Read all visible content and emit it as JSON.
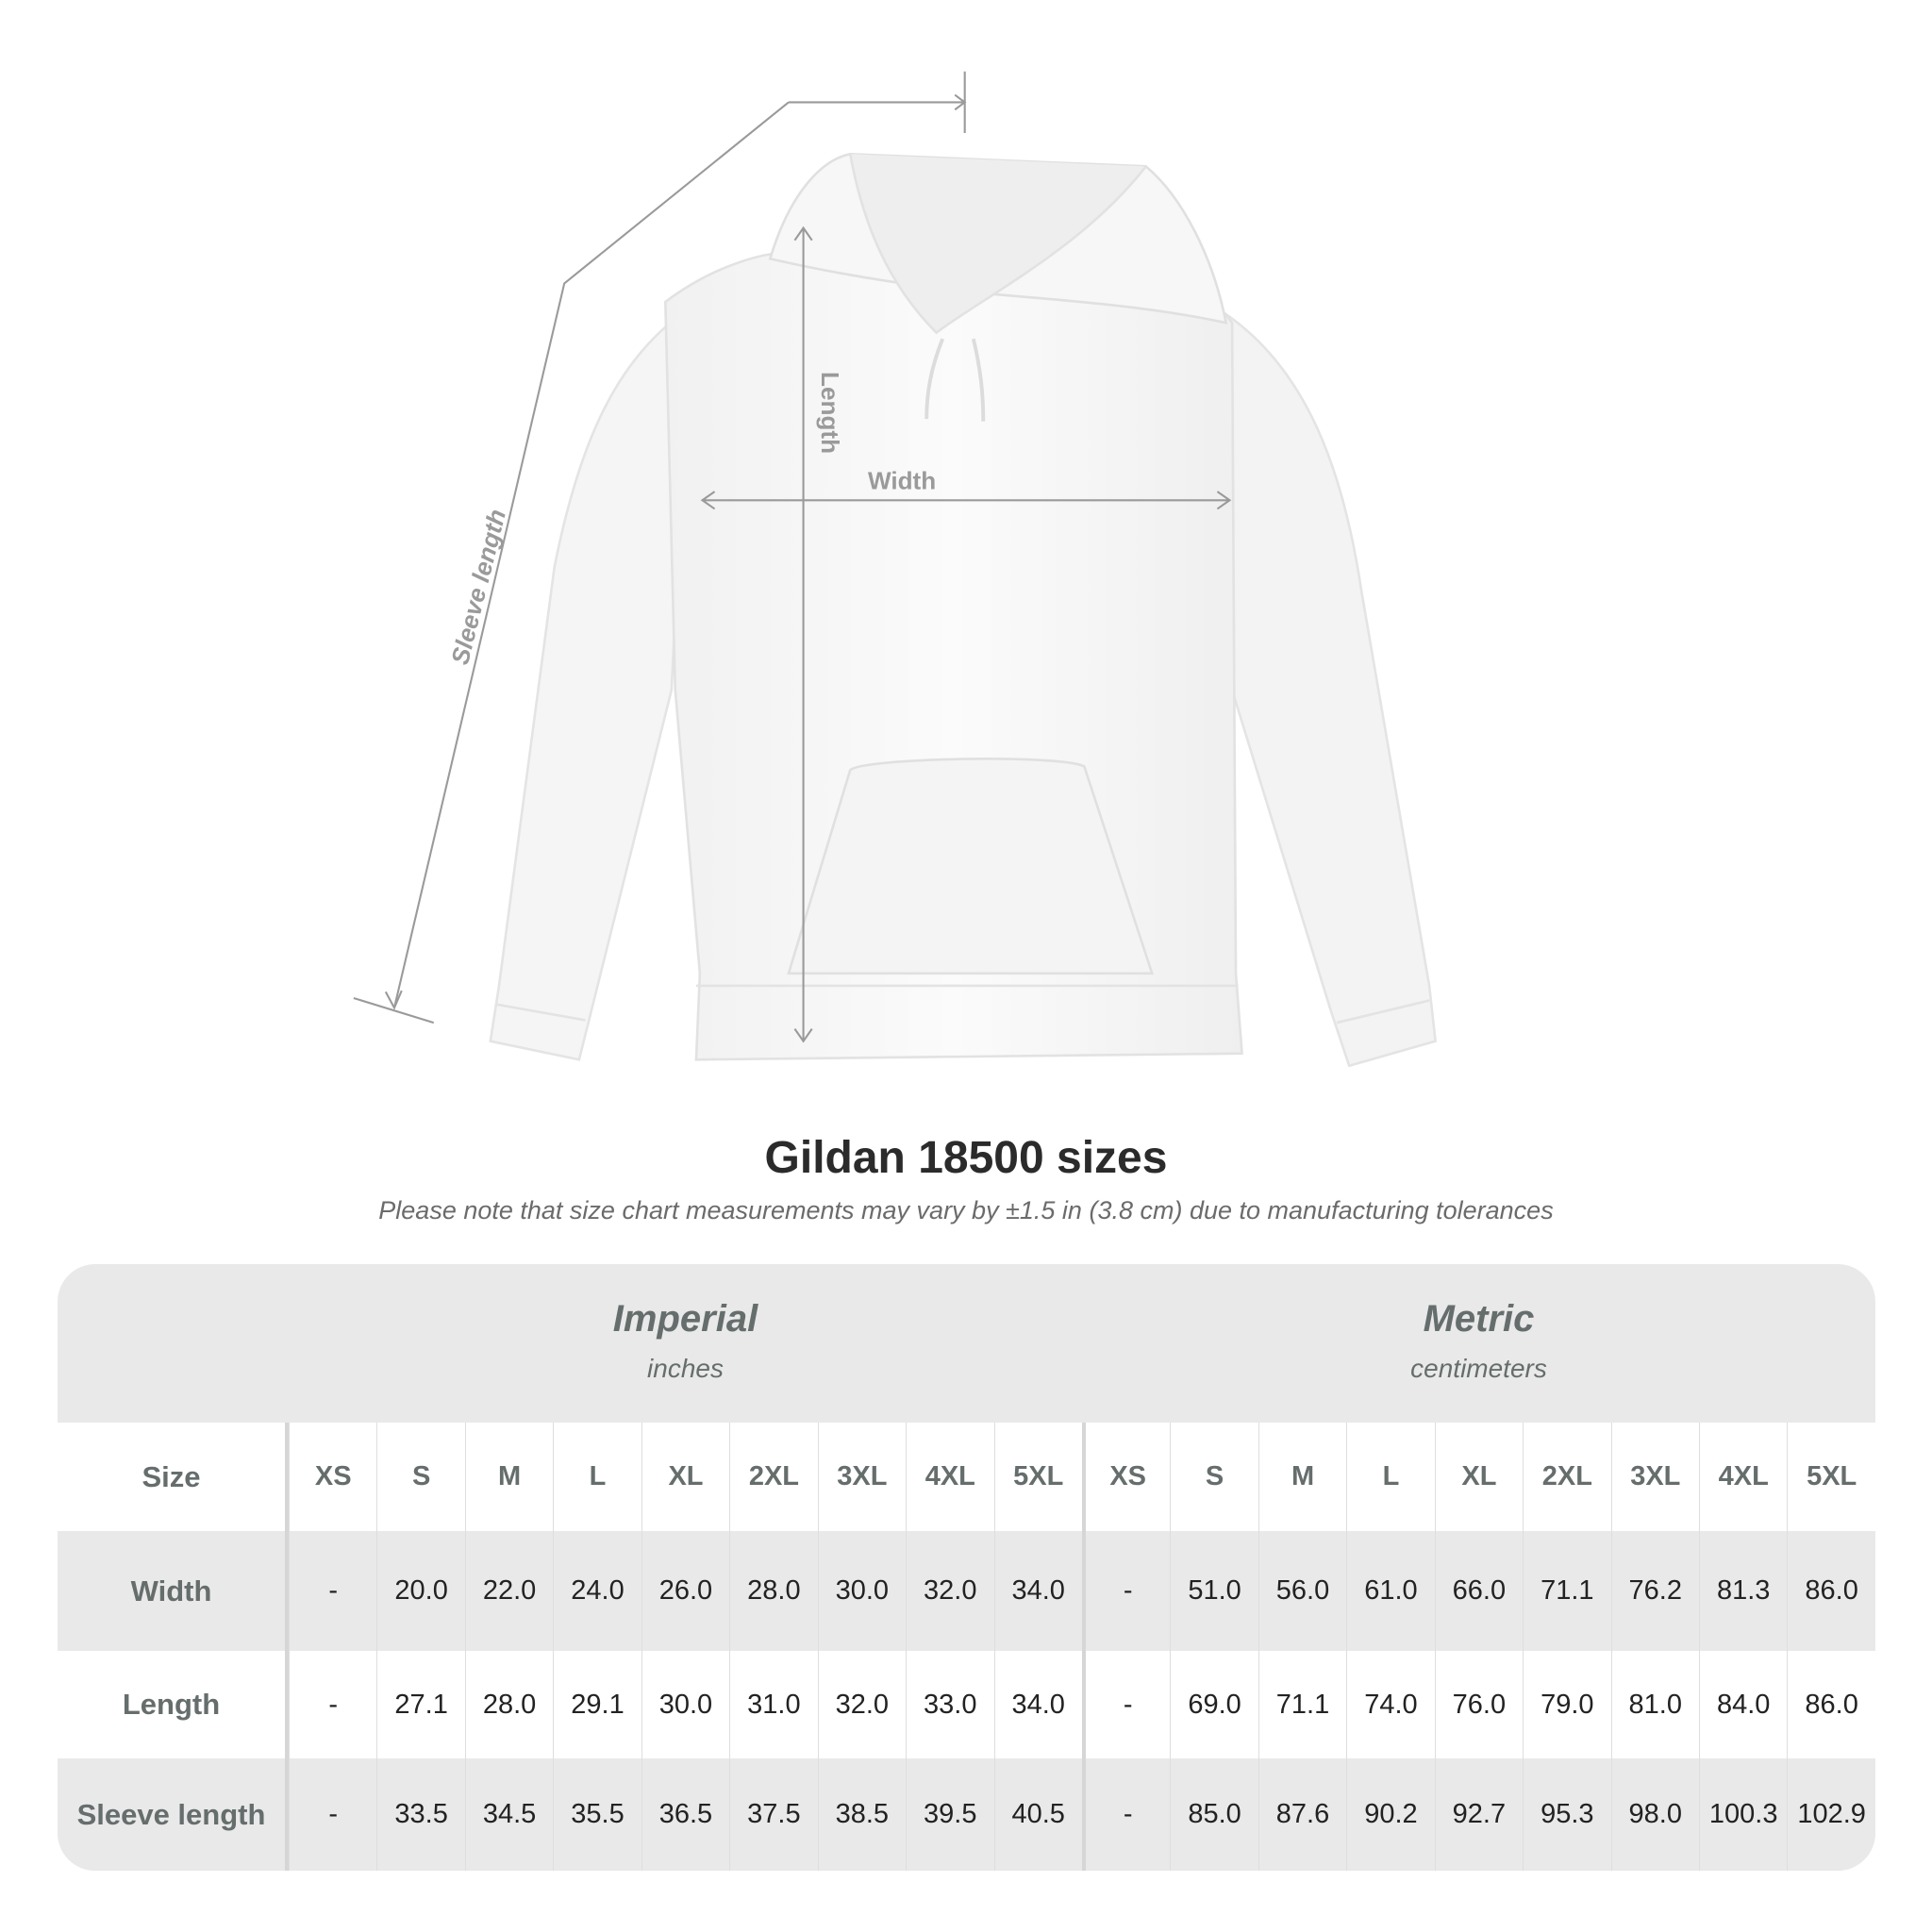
{
  "diagram": {
    "labels": {
      "sleeve": "Sleeve length",
      "length": "Length",
      "width": "Width"
    },
    "line_color": "#9a9a9a"
  },
  "title": "Gildan 18500 sizes",
  "note": "Please note that size chart measurements may vary by ±1.5 in (3.8 cm) due to manufacturing tolerances",
  "table": {
    "imperial": {
      "title": "Imperial",
      "unit": "inches"
    },
    "metric": {
      "title": "Metric",
      "unit": "centimeters"
    },
    "size_label": "Size",
    "sizes": [
      "XS",
      "S",
      "M",
      "L",
      "XL",
      "2XL",
      "3XL",
      "4XL",
      "5XL"
    ],
    "rows": [
      {
        "label": "Width",
        "imperial": [
          "-",
          "20.0",
          "22.0",
          "24.0",
          "26.0",
          "28.0",
          "30.0",
          "32.0",
          "34.0"
        ],
        "metric": [
          "-",
          "51.0",
          "56.0",
          "61.0",
          "66.0",
          "71.1",
          "76.2",
          "81.3",
          "86.0"
        ]
      },
      {
        "label": "Length",
        "imperial": [
          "-",
          "27.1",
          "28.0",
          "29.1",
          "30.0",
          "31.0",
          "32.0",
          "33.0",
          "34.0"
        ],
        "metric": [
          "-",
          "69.0",
          "71.1",
          "74.0",
          "76.0",
          "79.0",
          "81.0",
          "84.0",
          "86.0"
        ]
      },
      {
        "label": "Sleeve length",
        "imperial": [
          "-",
          "33.5",
          "34.5",
          "35.5",
          "36.5",
          "37.5",
          "38.5",
          "39.5",
          "40.5"
        ],
        "metric": [
          "-",
          "85.0",
          "87.6",
          "90.2",
          "92.7",
          "95.3",
          "98.0",
          "100.3",
          "102.9"
        ]
      }
    ],
    "colors": {
      "header_bg": "#e9e9e9",
      "label_text": "#666d6d"
    }
  }
}
